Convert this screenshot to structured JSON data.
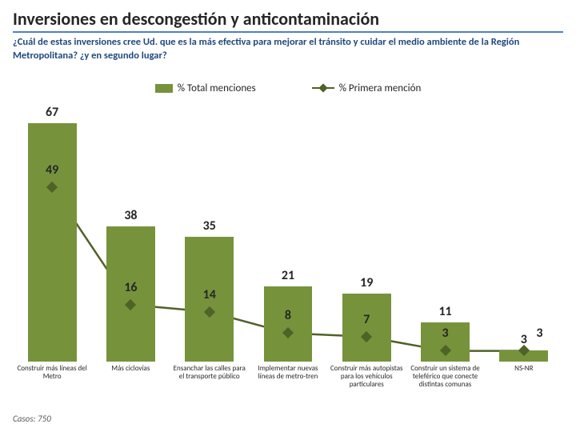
{
  "title": "Inversiones en descongestión y anticontaminación",
  "subtitle": "¿Cuál de estas inversiones cree Ud. que es la más efectiva para mejorar el tránsito y cuidar el medio ambiente de la Región Metropolitana? ¿y en segundo lugar?",
  "footer": "Casos: 750",
  "colors": {
    "title_underline": "#4f81bd",
    "subtitle_text": "#1f497d",
    "bar_fill": "#76933c",
    "line_color": "#4f6228",
    "marker_fill": "#4f6228",
    "background": "#ffffff",
    "label_text": "#262626"
  },
  "legend": {
    "bar_label": "% Total menciones",
    "line_label": "% Primera mención"
  },
  "chart": {
    "type": "bar+line",
    "y_max": 72,
    "bar_label_fontsize": 16,
    "marker_label_fontsize": 16,
    "xlabel_fontsize": 9,
    "categories": [
      {
        "label": "Construir más líneas del Metro",
        "bar": 67,
        "line": 49
      },
      {
        "label": "Más ciclovías",
        "bar": 38,
        "line": 16
      },
      {
        "label": "Ensanchar las calles para el transporte público",
        "bar": 35,
        "line": 14
      },
      {
        "label": "Implementar nuevas líneas de metro-tren",
        "bar": 21,
        "line": 8
      },
      {
        "label": "Construir más autopistas para los vehículos particulares",
        "bar": 19,
        "line": 7
      },
      {
        "label": "Construir un sistema de teleférico que conecte distintas comunas",
        "bar": 11,
        "line": 3
      },
      {
        "label": "NS-NR",
        "bar": 3,
        "line": 3
      }
    ]
  }
}
